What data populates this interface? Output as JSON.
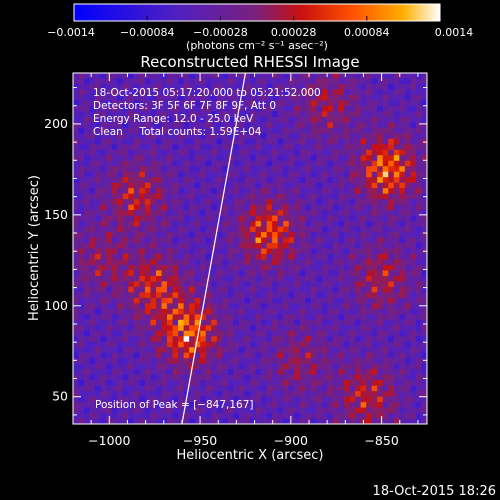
{
  "chart_data": {
    "type": "heatmap",
    "title": "Reconstructed RHESSI Image",
    "xlabel": "Heliocentric X (arcsec)",
    "ylabel": "Heliocentric Y (arcsec)",
    "xlim": [
      -1020,
      -825
    ],
    "ylim": [
      35,
      228
    ],
    "x_ticks": [
      -1000,
      -950,
      -900,
      -850
    ],
    "x_tick_labels": [
      "−1000",
      "−950",
      "−900",
      "−850"
    ],
    "y_ticks": [
      50,
      100,
      150,
      200
    ],
    "y_tick_labels": [
      "50",
      "100",
      "150",
      "200"
    ],
    "colorbar": {
      "range": [
        -0.0014,
        0.0014
      ],
      "ticks": [
        -0.0014,
        -0.00084,
        -0.00028,
        0.00028,
        0.00084,
        0.0014
      ],
      "tick_labels": [
        "−0.0014",
        "−0.00084",
        "−0.00028",
        "0.00028",
        "0.00084",
        "0.0014"
      ],
      "unit_label": "(photons cm⁻² s⁻¹ asec⁻²)",
      "colormap": "blue-purple-red-orange-yellow-white"
    },
    "annotations": [
      "18-Oct-2015 05:17:20.000 to 05:21:52.000",
      "Detectors: 3F 5F 6F 7F 8F 9F, Att 0",
      "Energy Range: 12.0 - 25.0 keV",
      "Clean     Total counts: 1.59E+04"
    ],
    "peak_label": "Position of Peak = [−847,167]",
    "peak": [
      -847,
      167
    ],
    "limb_line": {
      "x": [
        -960,
        -925
      ],
      "y": [
        35,
        228
      ]
    },
    "sources": [
      {
        "x": -956,
        "y": 85,
        "intensity": 0.0014
      },
      {
        "x": -975,
        "y": 110,
        "intensity": 0.001
      },
      {
        "x": -985,
        "y": 160,
        "intensity": 0.0009
      },
      {
        "x": -912,
        "y": 140,
        "intensity": 0.0012
      },
      {
        "x": -847,
        "y": 175,
        "intensity": 0.0014
      },
      {
        "x": -850,
        "y": 115,
        "intensity": 0.0008
      },
      {
        "x": -858,
        "y": 50,
        "intensity": 0.0009
      },
      {
        "x": -895,
        "y": 70,
        "intensity": 0.0006
      },
      {
        "x": -1005,
        "y": 125,
        "intensity": 0.0006
      },
      {
        "x": -880,
        "y": 210,
        "intensity": 0.0007
      }
    ]
  },
  "footer_date": "18-Oct-2015 18:26"
}
